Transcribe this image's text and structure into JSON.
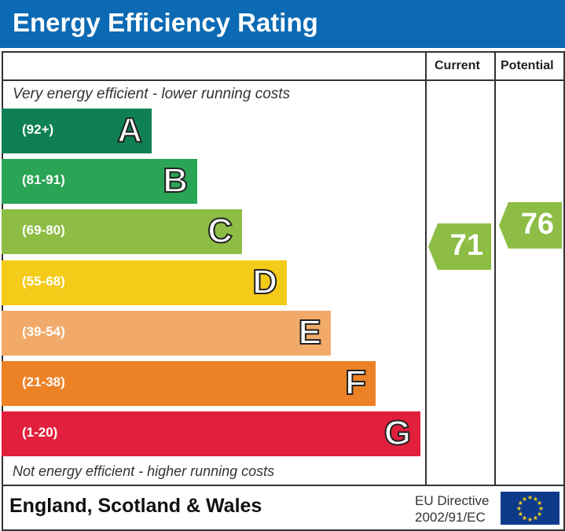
{
  "title": "Energy Efficiency Rating",
  "columns": {
    "current": "Current",
    "potential": "Potential"
  },
  "top_note": "Very energy efficient - lower running costs",
  "bottom_note": "Not energy efficient - higher running costs",
  "footer": {
    "region": "England, Scotland & Wales",
    "directive_line1": "EU Directive",
    "directive_line2": "2002/91/EC",
    "flag_icon": "eu-flag-icon"
  },
  "chart_data": {
    "type": "bar",
    "categories": [
      "A",
      "B",
      "C",
      "D",
      "E",
      "F",
      "G"
    ],
    "ranges": [
      "(92+)",
      "(81-91)",
      "(69-80)",
      "(55-68)",
      "(39-54)",
      "(21-38)",
      "(1-20)"
    ],
    "colors": [
      "#0f8053",
      "#2aa455",
      "#8dbd45",
      "#f5cb19",
      "#f2aa6a",
      "#ed8126",
      "#e21f3c"
    ],
    "current": {
      "value": 71,
      "band": "C",
      "color": "#8dbd45"
    },
    "potential": {
      "value": 76,
      "band": "C",
      "color": "#8dbd45"
    }
  }
}
